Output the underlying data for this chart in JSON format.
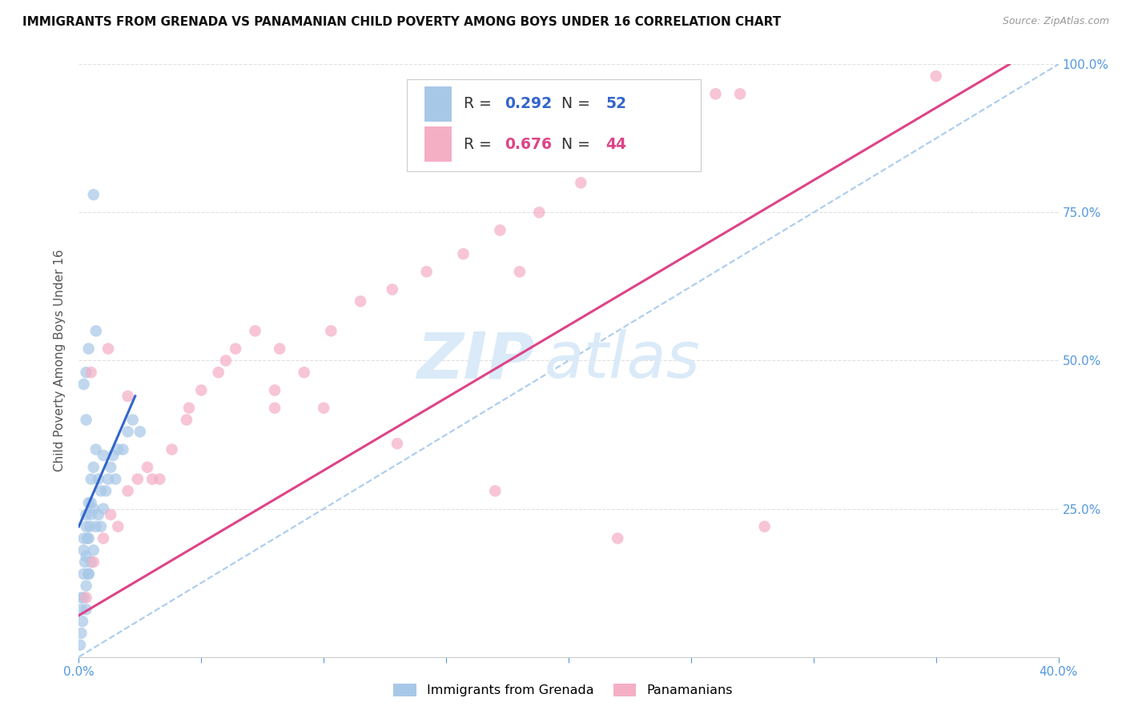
{
  "title": "IMMIGRANTS FROM GRENADA VS PANAMANIAN CHILD POVERTY AMONG BOYS UNDER 16 CORRELATION CHART",
  "source": "Source: ZipAtlas.com",
  "ylabel": "Child Poverty Among Boys Under 16",
  "legend_label1": "Immigrants from Grenada",
  "legend_label2": "Panamanians",
  "R1": "0.292",
  "N1": "52",
  "R2": "0.676",
  "N2": "44",
  "color1": "#a8c8e8",
  "color2": "#f5afc5",
  "line_color1": "#3366cc",
  "line_color2": "#dd4488",
  "ref_line_color": "#aaccee",
  "tick_color": "#5599dd",
  "legend_text_color1": "#3366cc",
  "legend_text_color2": "#dd4488",
  "legend_label_color": "#333333",
  "xlim": [
    0.0,
    0.4
  ],
  "ylim": [
    0.0,
    1.0
  ],
  "xticks": [
    0.0,
    0.05,
    0.1,
    0.15,
    0.2,
    0.25,
    0.3,
    0.35,
    0.4
  ],
  "yticks": [
    0.0,
    0.25,
    0.5,
    0.75,
    1.0
  ],
  "background_color": "#ffffff",
  "watermark1": "ZIP",
  "watermark2": "atlas",
  "watermark_color": "#daeaf8",
  "scatter1_x": [
    0.0005,
    0.001,
    0.001,
    0.0015,
    0.002,
    0.002,
    0.002,
    0.0025,
    0.003,
    0.003,
    0.003,
    0.003,
    0.0035,
    0.004,
    0.004,
    0.004,
    0.0045,
    0.005,
    0.005,
    0.005,
    0.006,
    0.006,
    0.006,
    0.007,
    0.007,
    0.008,
    0.008,
    0.009,
    0.009,
    0.01,
    0.01,
    0.011,
    0.012,
    0.013,
    0.014,
    0.015,
    0.016,
    0.018,
    0.02,
    0.022,
    0.025,
    0.003,
    0.004,
    0.005,
    0.006,
    0.002,
    0.003,
    0.001,
    0.002,
    0.004,
    0.003,
    0.007
  ],
  "scatter1_y": [
    0.02,
    0.04,
    0.08,
    0.06,
    0.1,
    0.14,
    0.18,
    0.16,
    0.08,
    0.12,
    0.17,
    0.22,
    0.2,
    0.14,
    0.2,
    0.26,
    0.22,
    0.16,
    0.24,
    0.3,
    0.18,
    0.25,
    0.32,
    0.22,
    0.35,
    0.24,
    0.3,
    0.22,
    0.28,
    0.25,
    0.34,
    0.28,
    0.3,
    0.32,
    0.34,
    0.3,
    0.35,
    0.35,
    0.38,
    0.4,
    0.38,
    0.48,
    0.52,
    0.26,
    0.78,
    0.2,
    0.24,
    0.1,
    0.46,
    0.14,
    0.4,
    0.55
  ],
  "scatter2_x": [
    0.003,
    0.006,
    0.01,
    0.013,
    0.016,
    0.02,
    0.024,
    0.028,
    0.033,
    0.038,
    0.044,
    0.05,
    0.057,
    0.064,
    0.072,
    0.082,
    0.092,
    0.103,
    0.115,
    0.128,
    0.142,
    0.157,
    0.172,
    0.188,
    0.205,
    0.222,
    0.24,
    0.26,
    0.005,
    0.012,
    0.02,
    0.03,
    0.045,
    0.06,
    0.08,
    0.1,
    0.13,
    0.17,
    0.22,
    0.28,
    0.35,
    0.08,
    0.18,
    0.27
  ],
  "scatter2_y": [
    0.1,
    0.16,
    0.2,
    0.24,
    0.22,
    0.28,
    0.3,
    0.32,
    0.3,
    0.35,
    0.4,
    0.45,
    0.48,
    0.52,
    0.55,
    0.52,
    0.48,
    0.55,
    0.6,
    0.62,
    0.65,
    0.68,
    0.72,
    0.75,
    0.8,
    0.84,
    0.88,
    0.95,
    0.48,
    0.52,
    0.44,
    0.3,
    0.42,
    0.5,
    0.45,
    0.42,
    0.36,
    0.28,
    0.2,
    0.22,
    0.98,
    0.42,
    0.65,
    0.95
  ],
  "line1_x": [
    0.0,
    0.023
  ],
  "line1_y": [
    0.22,
    0.44
  ],
  "line2_x": [
    0.0,
    0.38
  ],
  "line2_y": [
    0.07,
    1.0
  ],
  "ref_line_x": [
    0.0,
    0.4
  ],
  "ref_line_y": [
    0.0,
    1.0
  ]
}
